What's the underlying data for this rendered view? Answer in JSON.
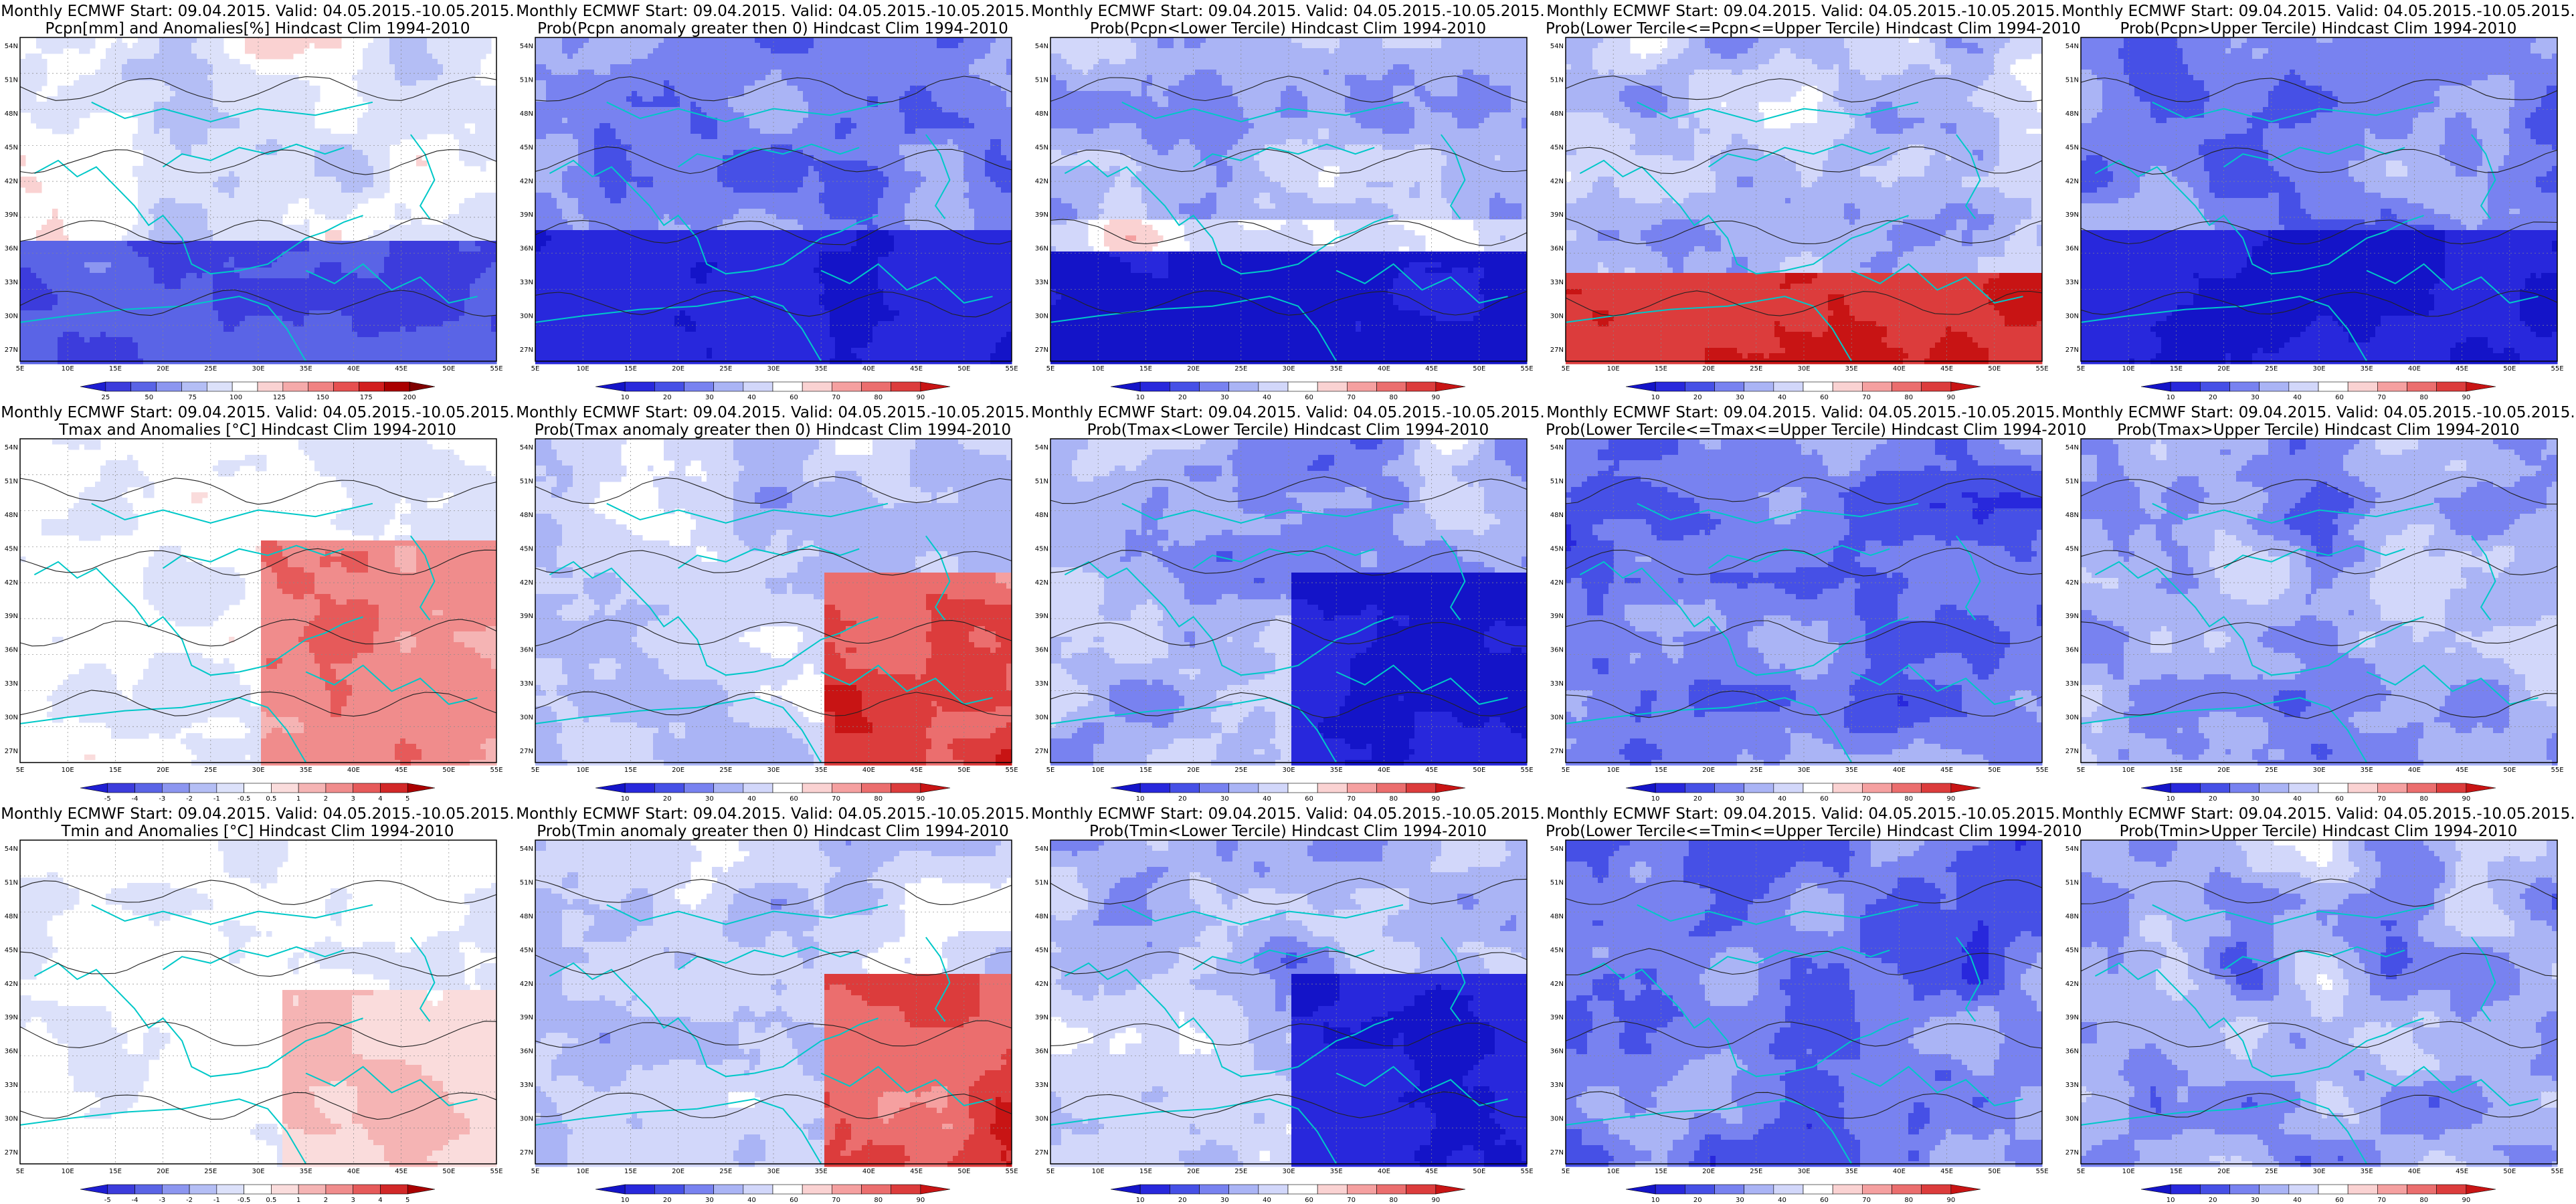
{
  "panels": [
    {
      "line1": "Monthly ECMWF Start: 09.04.2015. Valid: 04.05.2015.-10.05.2015.",
      "line2": "Pcpn[mm] and Anomalies[%] Hindcast Clim 1994-2010",
      "colors": [
        "#1e1ed2",
        "#3c3cdc",
        "#5a64e6",
        "#8c96f0",
        "#b4bef5",
        "#dce1fa",
        "#ffffff",
        "#fad2d2",
        "#f5aaaa",
        "#f08282",
        "#e65050",
        "#d21e1e",
        "#aa0000",
        "#800000"
      ],
      "bar_labels": [
        "25",
        "50",
        "75",
        "100",
        "125",
        "150",
        "175",
        "200"
      ],
      "field": "pcpn"
    },
    {
      "line1": "Monthly ECMWF Start: 09.04.2015. Valid: 04.05.2015.-10.05.2015.",
      "line2": "Prob(Pcpn anomaly greater then 0) Hindcast Clim 1994-2010",
      "colors": [
        "#1414c8",
        "#2828dc",
        "#4650e6",
        "#7882f0",
        "#aab4f5",
        "#d2d7fa",
        "#ffffff",
        "#fad2d2",
        "#f5a0a0",
        "#eb6e6e",
        "#dc3c3c",
        "#c81414"
      ],
      "bar_labels": [
        "10",
        "20",
        "30",
        "40",
        "60",
        "70",
        "80",
        "90"
      ],
      "field": "probdry"
    },
    {
      "line1": "Monthly ECMWF Start: 09.04.2015. Valid: 04.05.2015.-10.05.2015.",
      "line2": "Prob(Pcpn<Lower Tercile) Hindcast Clim 1994-2010",
      "colors": [
        "#1414c8",
        "#2828dc",
        "#4650e6",
        "#7882f0",
        "#aab4f5",
        "#d2d7fa",
        "#ffffff",
        "#fad2d2",
        "#f5a0a0",
        "#eb6e6e",
        "#dc3c3c",
        "#c81414"
      ],
      "bar_labels": [
        "10",
        "20",
        "30",
        "40",
        "60",
        "70",
        "80",
        "90"
      ],
      "field": "lowwet"
    },
    {
      "line1": "Monthly ECMWF Start: 09.04.2015. Valid: 04.05.2015.-10.05.2015.",
      "line2": "Prob(Lower Tercile<=Pcpn<=Upper Tercile) Hindcast Clim 1994-2010",
      "colors": [
        "#1414c8",
        "#2828dc",
        "#4650e6",
        "#7882f0",
        "#aab4f5",
        "#d2d7fa",
        "#ffffff",
        "#fad2d2",
        "#f5a0a0",
        "#eb6e6e",
        "#dc3c3c",
        "#c81414"
      ],
      "bar_labels": [
        "10",
        "20",
        "30",
        "40",
        "60",
        "70",
        "80",
        "90"
      ],
      "field": "midred"
    },
    {
      "line1": "Monthly ECMWF Start: 09.04.2015. Valid: 04.05.2015.-10.05.2015.",
      "line2": "Prob(Pcpn>Upper Tercile) Hindcast Clim 1994-2010",
      "colors": [
        "#1414c8",
        "#2828dc",
        "#4650e6",
        "#7882f0",
        "#aab4f5",
        "#d2d7fa",
        "#ffffff",
        "#fad2d2",
        "#f5a0a0",
        "#eb6e6e",
        "#dc3c3c",
        "#c81414"
      ],
      "bar_labels": [
        "10",
        "20",
        "30",
        "40",
        "60",
        "70",
        "80",
        "90"
      ],
      "field": "probdry"
    },
    {
      "line1": "Monthly ECMWF Start: 09.04.2015. Valid: 04.05.2015.-10.05.2015.",
      "line2": "Tmax and Anomalies [°C] Hindcast Clim 1994-2010",
      "colors": [
        "#1e1ed2",
        "#3c3cdc",
        "#5a64e6",
        "#8c96f0",
        "#b4bef5",
        "#dce1fa",
        "#ffffff",
        "#fadcdc",
        "#f5b4b4",
        "#f08c8c",
        "#e65a5a",
        "#d22828",
        "#aa0000"
      ],
      "bar_labels": [
        "-5",
        "-4",
        "-3",
        "-2",
        "-1",
        "-0.5",
        "0.5",
        "1",
        "2",
        "3",
        "4",
        "5"
      ],
      "field": "warmeast"
    },
    {
      "line1": "Monthly ECMWF Start: 09.04.2015. Valid: 04.05.2015.-10.05.2015.",
      "line2": "Prob(Tmax anomaly greater then 0) Hindcast Clim 1994-2010",
      "colors": [
        "#1414c8",
        "#2828dc",
        "#4650e6",
        "#7882f0",
        "#aab4f5",
        "#d2d7fa",
        "#ffffff",
        "#fad2d2",
        "#f5a0a0",
        "#eb6e6e",
        "#dc3c3c",
        "#c81414"
      ],
      "bar_labels": [
        "10",
        "20",
        "30",
        "40",
        "60",
        "70",
        "80",
        "90"
      ],
      "field": "warmeast2"
    },
    {
      "line1": "Monthly ECMWF Start: 09.04.2015. Valid: 04.05.2015.-10.05.2015.",
      "line2": "Prob(Tmax<Lower Tercile) Hindcast Clim 1994-2010",
      "colors": [
        "#1414c8",
        "#2828dc",
        "#4650e6",
        "#7882f0",
        "#aab4f5",
        "#d2d7fa",
        "#ffffff",
        "#fad2d2",
        "#f5a0a0",
        "#eb6e6e",
        "#dc3c3c",
        "#c81414"
      ],
      "bar_labels": [
        "10",
        "20",
        "30",
        "40",
        "60",
        "70",
        "80",
        "90"
      ],
      "field": "coldeast"
    },
    {
      "line1": "Monthly ECMWF Start: 09.04.2015. Valid: 04.05.2015.-10.05.2015.",
      "line2": "Prob(Lower Tercile<=Tmax<=Upper Tercile) Hindcast Clim 1994-2010",
      "colors": [
        "#1414c8",
        "#2828dc",
        "#4650e6",
        "#7882f0",
        "#aab4f5",
        "#d2d7fa",
        "#ffffff",
        "#fad2d2",
        "#f5a0a0",
        "#eb6e6e",
        "#dc3c3c",
        "#c81414"
      ],
      "bar_labels": [
        "10",
        "20",
        "30",
        "40",
        "60",
        "70",
        "80",
        "90"
      ],
      "field": "blue"
    },
    {
      "line1": "Monthly ECMWF Start: 09.04.2015. Valid: 04.05.2015.-10.05.2015.",
      "line2": "Prob(Tmax>Upper Tercile) Hindcast Clim 1994-2010",
      "colors": [
        "#1414c8",
        "#2828dc",
        "#4650e6",
        "#7882f0",
        "#aab4f5",
        "#d2d7fa",
        "#ffffff",
        "#fad2d2",
        "#f5a0a0",
        "#eb6e6e",
        "#dc3c3c",
        "#c81414"
      ],
      "bar_labels": [
        "10",
        "20",
        "30",
        "40",
        "60",
        "70",
        "80",
        "90"
      ],
      "field": "bluemix"
    },
    {
      "line1": "Monthly ECMWF Start: 09.04.2015. Valid: 04.05.2015.-10.05.2015.",
      "line2": "Tmin and Anomalies [°C] Hindcast Clim 1994-2010",
      "colors": [
        "#1e1ed2",
        "#3c3cdc",
        "#5a64e6",
        "#8c96f0",
        "#b4bef5",
        "#dce1fa",
        "#ffffff",
        "#fadcdc",
        "#f5b4b4",
        "#f08c8c",
        "#e65a5a",
        "#d22828",
        "#aa0000"
      ],
      "bar_labels": [
        "-5",
        "-4",
        "-3",
        "-2",
        "-1",
        "-0.5",
        "0.5",
        "1",
        "2",
        "3",
        "4",
        "5"
      ],
      "field": "lightwarm"
    },
    {
      "line1": "Monthly ECMWF Start: 09.04.2015. Valid: 04.05.2015.-10.05.2015.",
      "line2": "Prob(Tmin anomaly greater then 0) Hindcast Clim 1994-2010",
      "colors": [
        "#1414c8",
        "#2828dc",
        "#4650e6",
        "#7882f0",
        "#aab4f5",
        "#d2d7fa",
        "#ffffff",
        "#fad2d2",
        "#f5a0a0",
        "#eb6e6e",
        "#dc3c3c",
        "#c81414"
      ],
      "bar_labels": [
        "10",
        "20",
        "30",
        "40",
        "60",
        "70",
        "80",
        "90"
      ],
      "field": "warmeast2"
    },
    {
      "line1": "Monthly ECMWF Start: 09.04.2015. Valid: 04.05.2015.-10.05.2015.",
      "line2": "Prob(Tmin<Lower Tercile) Hindcast Clim 1994-2010",
      "colors": [
        "#1414c8",
        "#2828dc",
        "#4650e6",
        "#7882f0",
        "#aab4f5",
        "#d2d7fa",
        "#ffffff",
        "#fad2d2",
        "#f5a0a0",
        "#eb6e6e",
        "#dc3c3c",
        "#c81414"
      ],
      "bar_labels": [
        "10",
        "20",
        "30",
        "40",
        "60",
        "70",
        "80",
        "90"
      ],
      "field": "coldeast"
    },
    {
      "line1": "Monthly ECMWF Start: 09.04.2015. Valid: 04.05.2015.-10.05.2015.",
      "line2": "Prob(Lower Tercile<=Tmin<=Upper Tercile) Hindcast Clim 1994-2010",
      "colors": [
        "#1414c8",
        "#2828dc",
        "#4650e6",
        "#7882f0",
        "#aab4f5",
        "#d2d7fa",
        "#ffffff",
        "#fad2d2",
        "#f5a0a0",
        "#eb6e6e",
        "#dc3c3c",
        "#c81414"
      ],
      "bar_labels": [
        "10",
        "20",
        "30",
        "40",
        "60",
        "70",
        "80",
        "90"
      ],
      "field": "blue"
    },
    {
      "line1": "Monthly ECMWF Start: 09.04.2015. Valid: 04.05.2015.-10.05.2015.",
      "line2": "Prob(Tmin>Upper Tercile) Hindcast Clim 1994-2010",
      "colors": [
        "#1414c8",
        "#2828dc",
        "#4650e6",
        "#7882f0",
        "#aab4f5",
        "#d2d7fa",
        "#ffffff",
        "#fad2d2",
        "#f5a0a0",
        "#eb6e6e",
        "#dc3c3c",
        "#c81414"
      ],
      "bar_labels": [
        "10",
        "20",
        "30",
        "40",
        "60",
        "70",
        "80",
        "90"
      ],
      "field": "bluemix"
    }
  ],
  "lat_labels": [
    "54N",
    "51N",
    "48N",
    "45N",
    "42N",
    "39N",
    "36N",
    "33N",
    "30N",
    "27N"
  ],
  "lon_labels": [
    "5E",
    "10E",
    "15E",
    "20E",
    "25E",
    "30E",
    "35E",
    "40E",
    "45E",
    "50E",
    "55E"
  ],
  "coastline_color": "#00c8c8"
}
